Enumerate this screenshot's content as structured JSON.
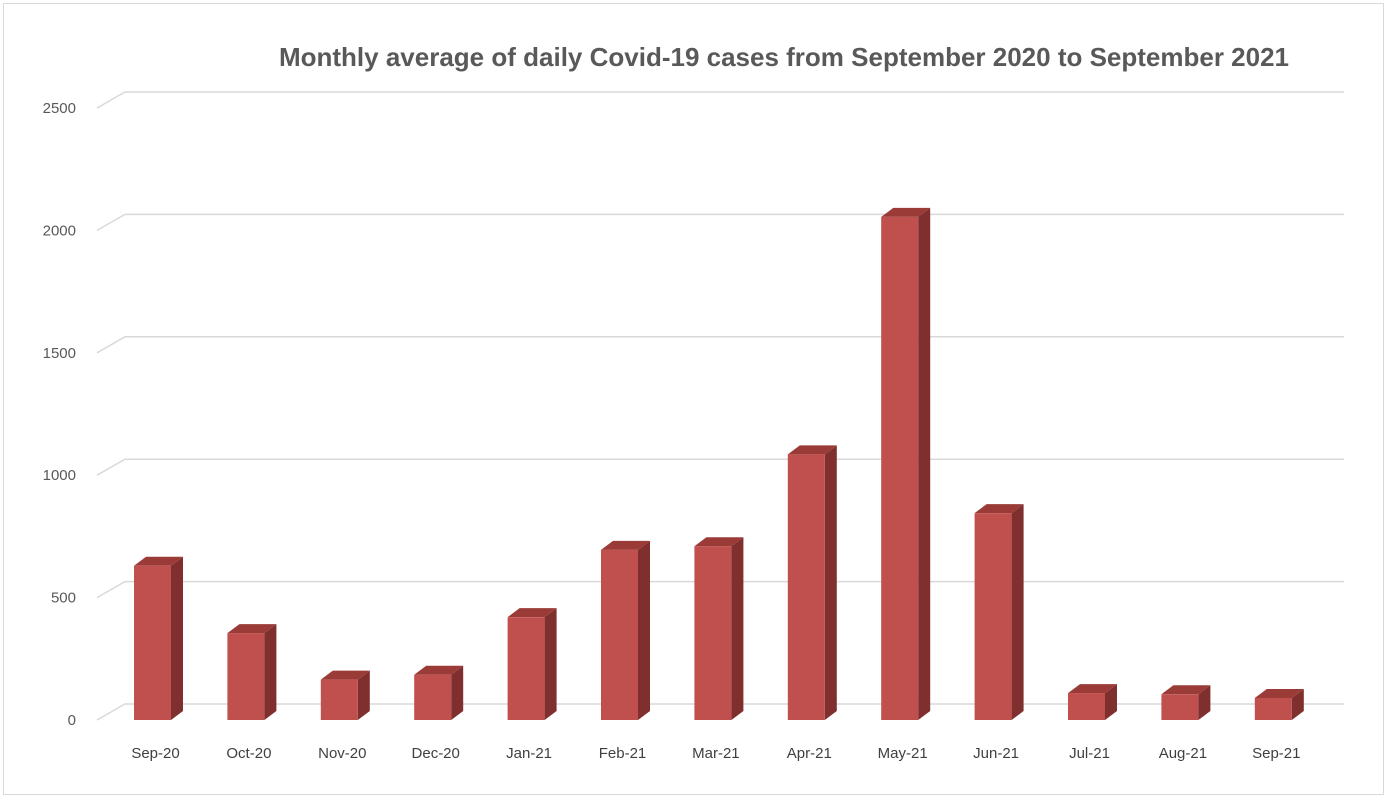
{
  "chart_data": {
    "type": "bar",
    "title": "Monthly average of daily  Covid-19 cases from September 2020 to September 2021",
    "xlabel": "",
    "ylabel": "",
    "categories": [
      "Sep-20",
      "Oct-20",
      "Nov-20",
      "Dec-20",
      "Jan-21",
      "Feb-21",
      "Mar-21",
      "Apr-21",
      "May-21",
      "Jun-21",
      "Jul-21",
      "Aug-21",
      "Sep-21"
    ],
    "values": [
      630,
      355,
      165,
      185,
      420,
      695,
      710,
      1085,
      2055,
      845,
      110,
      105,
      90
    ],
    "ylim": [
      0,
      2500
    ],
    "yticks": [
      "0",
      "500",
      "1000",
      "1500",
      "2000",
      "2500"
    ],
    "grid": true,
    "legend": "none",
    "colors": {
      "bar_front": "#c0504d",
      "bar_side": "#7f2f2d",
      "bar_top": "#9b3b38"
    }
  }
}
